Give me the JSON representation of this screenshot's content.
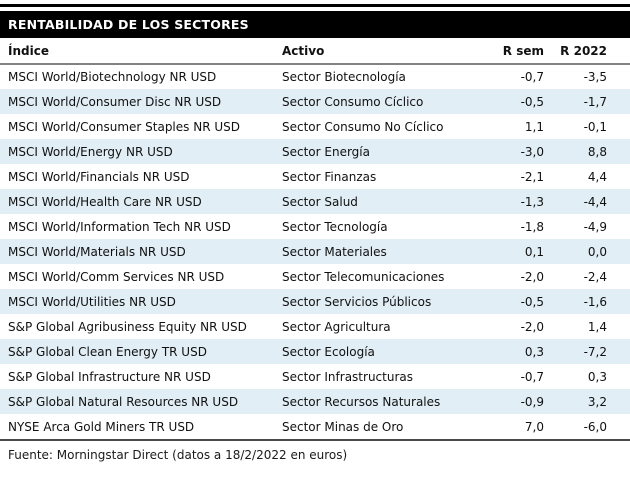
{
  "title": "RENTABILIDAD DE LOS SECTORES",
  "table": {
    "columns": {
      "index": "Índice",
      "asset": "Activo",
      "r_week": "R sem",
      "r_year": "R 2022"
    },
    "rows": [
      {
        "index": "MSCI World/Biotechnology NR USD",
        "asset": "Sector Biotecnología",
        "r_week": "-0,7",
        "r_year": "-3,5"
      },
      {
        "index": "MSCI World/Consumer Disc NR USD",
        "asset": "Sector Consumo Cíclico",
        "r_week": "-0,5",
        "r_year": "-1,7"
      },
      {
        "index": "MSCI World/Consumer Staples NR USD",
        "asset": "Sector Consumo No Cíclico",
        "r_week": "1,1",
        "r_year": "-0,1"
      },
      {
        "index": "MSCI World/Energy NR USD",
        "asset": "Sector Energía",
        "r_week": "-3,0",
        "r_year": "8,8"
      },
      {
        "index": "MSCI World/Financials NR USD",
        "asset": "Sector Finanzas",
        "r_week": "-2,1",
        "r_year": "4,4"
      },
      {
        "index": "MSCI World/Health Care NR USD",
        "asset": "Sector Salud",
        "r_week": "-1,3",
        "r_year": "-4,4"
      },
      {
        "index": "MSCI World/Information Tech NR USD",
        "asset": "Sector Tecnología",
        "r_week": "-1,8",
        "r_year": "-4,9"
      },
      {
        "index": "MSCI World/Materials NR USD",
        "asset": "Sector Materiales",
        "r_week": "0,1",
        "r_year": "0,0"
      },
      {
        "index": "MSCI World/Comm Services NR USD",
        "asset": "Sector Telecomunicaciones",
        "r_week": "-2,0",
        "r_year": "-2,4"
      },
      {
        "index": "MSCI World/Utilities NR USD",
        "asset": "Sector Servicios Públicos",
        "r_week": "-0,5",
        "r_year": "-1,6"
      },
      {
        "index": "S&P Global Agribusiness Equity NR USD",
        "asset": "Sector Agricultura",
        "r_week": "-2,0",
        "r_year": "1,4"
      },
      {
        "index": "S&P Global Clean Energy TR USD",
        "asset": "Sector Ecología",
        "r_week": "0,3",
        "r_year": "-7,2"
      },
      {
        "index": "S&P Global Infrastructure NR USD",
        "asset": "Sector Infrastructuras",
        "r_week": "-0,7",
        "r_year": "0,3"
      },
      {
        "index": "S&P Global Natural Resources NR USD",
        "asset": "Sector Recursos Naturales",
        "r_week": "-0,9",
        "r_year": "3,2"
      },
      {
        "index": "NYSE Arca Gold Miners TR USD",
        "asset": "Sector Minas de Oro",
        "r_week": "7,0",
        "r_year": "-6,0"
      }
    ]
  },
  "footer": {
    "source": "Fuente: Morningstar Direct (datos a 18/2/2022 en euros)"
  },
  "colors": {
    "title_bg": "#000000",
    "title_text": "#ffffff",
    "stripe": "#e1eef5",
    "header_rule": "#828282",
    "bottom_rule": "#4a4a4a",
    "text": "#111111"
  }
}
